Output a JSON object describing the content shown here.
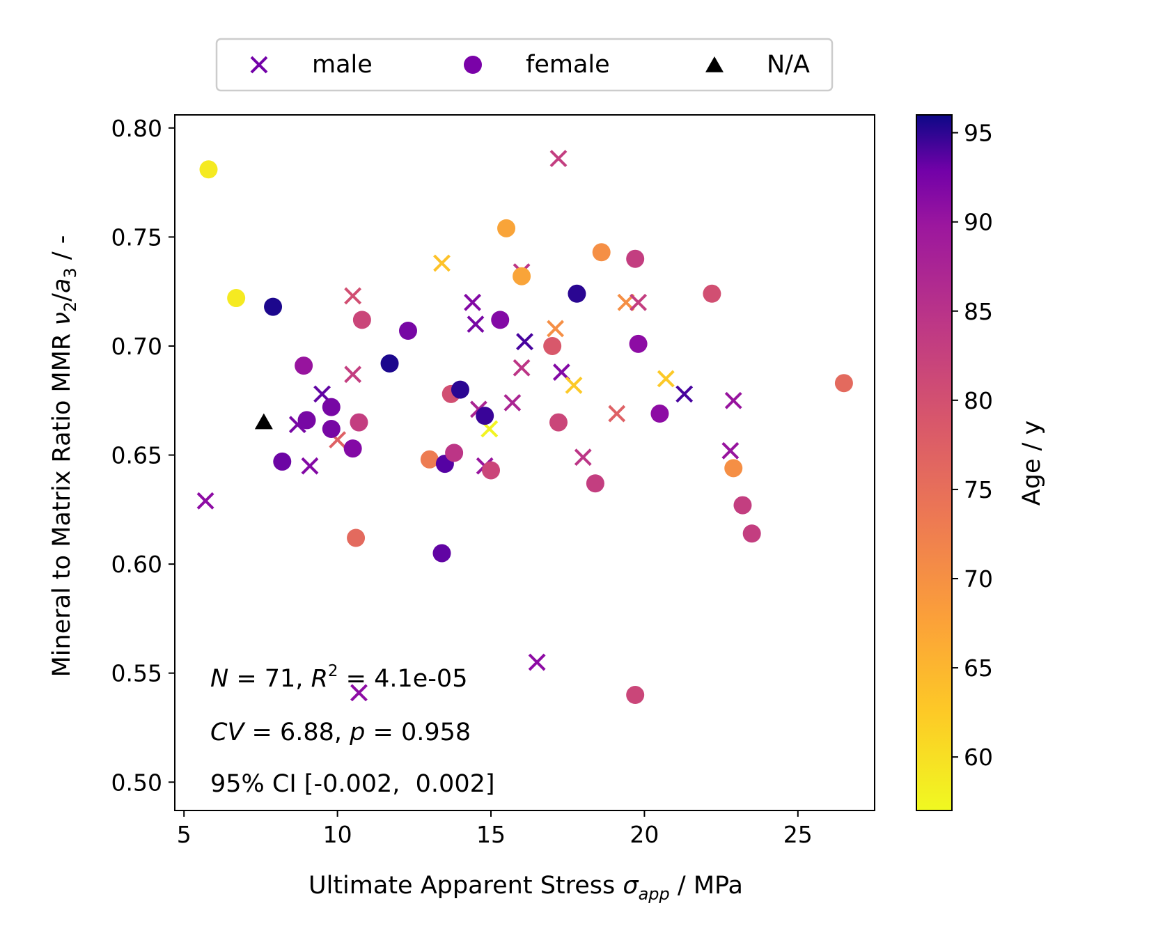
{
  "chart_data": {
    "type": "scatter",
    "xlabel": {
      "text": "Ultimate Apparent Stress ",
      "sym": "σ",
      "sub": "app",
      "tail": " / MPa"
    },
    "ylabel": {
      "pre": "Mineral to Matrix Ratio MMR ",
      "nu": "ν",
      "nusub": "2",
      "slash": "/",
      "a": "a",
      "asub": "3",
      "tail": " / -"
    },
    "xlim": [
      4.7,
      27.5
    ],
    "ylim": [
      0.487,
      0.806
    ],
    "xticks": [
      5,
      10,
      15,
      20,
      25
    ],
    "yticks": [
      0.5,
      0.55,
      0.6,
      0.65,
      0.7,
      0.75,
      0.8
    ],
    "colorbar": {
      "label": "Age / y",
      "range": [
        57,
        96
      ],
      "ticks": [
        60,
        65,
        70,
        75,
        80,
        85,
        90,
        95
      ],
      "colormap": "plasma_r"
    },
    "legend": {
      "placement": "top-center",
      "entries": [
        {
          "label": "male",
          "marker": "x"
        },
        {
          "label": "female",
          "marker": "o"
        },
        {
          "label": "N/A",
          "marker": "^"
        }
      ]
    },
    "annotations": {
      "line1": {
        "N": "N",
        "eqN": " = 71, ",
        "R": "R",
        "sup": "2",
        "rest": " = 4.1e-05"
      },
      "line2": {
        "CV": "CV",
        "eq": " = 6.88, ",
        "p": "p",
        "rest": " = 0.958"
      },
      "line3": "95% CI [-0.002,  0.002]"
    },
    "series": [
      {
        "name": "male",
        "marker": "x",
        "points": [
          {
            "x": 5.7,
            "y": 0.629,
            "age": 86
          },
          {
            "x": 8.7,
            "y": 0.664,
            "age": 88
          },
          {
            "x": 9.1,
            "y": 0.645,
            "age": 87
          },
          {
            "x": 9.5,
            "y": 0.678,
            "age": 90
          },
          {
            "x": 10.0,
            "y": 0.657,
            "age": 76
          },
          {
            "x": 10.5,
            "y": 0.723,
            "age": 78
          },
          {
            "x": 10.5,
            "y": 0.687,
            "age": 80
          },
          {
            "x": 10.7,
            "y": 0.541,
            "age": 86
          },
          {
            "x": 13.4,
            "y": 0.738,
            "age": 66
          },
          {
            "x": 14.4,
            "y": 0.72,
            "age": 87
          },
          {
            "x": 14.5,
            "y": 0.71,
            "age": 88
          },
          {
            "x": 14.6,
            "y": 0.671,
            "age": 83
          },
          {
            "x": 14.8,
            "y": 0.645,
            "age": 85
          },
          {
            "x": 14.95,
            "y": 0.662,
            "age": 58
          },
          {
            "x": 15.7,
            "y": 0.674,
            "age": 83
          },
          {
            "x": 16.0,
            "y": 0.734,
            "age": 81
          },
          {
            "x": 16.0,
            "y": 0.69,
            "age": 81
          },
          {
            "x": 16.1,
            "y": 0.702,
            "age": 92
          },
          {
            "x": 16.5,
            "y": 0.555,
            "age": 86
          },
          {
            "x": 17.1,
            "y": 0.708,
            "age": 71
          },
          {
            "x": 17.2,
            "y": 0.786,
            "age": 80
          },
          {
            "x": 17.3,
            "y": 0.688,
            "age": 87
          },
          {
            "x": 17.7,
            "y": 0.682,
            "age": 65
          },
          {
            "x": 18.0,
            "y": 0.649,
            "age": 81
          },
          {
            "x": 19.1,
            "y": 0.669,
            "age": 76
          },
          {
            "x": 19.4,
            "y": 0.72,
            "age": 71
          },
          {
            "x": 19.8,
            "y": 0.72,
            "age": 80
          },
          {
            "x": 20.7,
            "y": 0.685,
            "age": 65
          },
          {
            "x": 21.3,
            "y": 0.678,
            "age": 92
          },
          {
            "x": 22.8,
            "y": 0.652,
            "age": 85
          },
          {
            "x": 22.9,
            "y": 0.675,
            "age": 85
          }
        ]
      },
      {
        "name": "female",
        "marker": "o",
        "points": [
          {
            "x": 5.8,
            "y": 0.781,
            "age": 60
          },
          {
            "x": 6.7,
            "y": 0.722,
            "age": 60
          },
          {
            "x": 7.9,
            "y": 0.718,
            "age": 95
          },
          {
            "x": 8.2,
            "y": 0.647,
            "age": 89
          },
          {
            "x": 8.9,
            "y": 0.691,
            "age": 85
          },
          {
            "x": 9.0,
            "y": 0.666,
            "age": 88
          },
          {
            "x": 9.8,
            "y": 0.672,
            "age": 88
          },
          {
            "x": 9.8,
            "y": 0.662,
            "age": 88
          },
          {
            "x": 10.5,
            "y": 0.653,
            "age": 87
          },
          {
            "x": 10.6,
            "y": 0.612,
            "age": 75
          },
          {
            "x": 10.7,
            "y": 0.665,
            "age": 80
          },
          {
            "x": 10.8,
            "y": 0.712,
            "age": 79
          },
          {
            "x": 11.7,
            "y": 0.692,
            "age": 95
          },
          {
            "x": 12.3,
            "y": 0.707,
            "age": 88
          },
          {
            "x": 13.0,
            "y": 0.648,
            "age": 73
          },
          {
            "x": 13.4,
            "y": 0.605,
            "age": 90
          },
          {
            "x": 13.5,
            "y": 0.646,
            "age": 91
          },
          {
            "x": 13.7,
            "y": 0.678,
            "age": 78
          },
          {
            "x": 13.8,
            "y": 0.651,
            "age": 81
          },
          {
            "x": 14.0,
            "y": 0.68,
            "age": 94
          },
          {
            "x": 14.8,
            "y": 0.668,
            "age": 93
          },
          {
            "x": 15.0,
            "y": 0.643,
            "age": 79
          },
          {
            "x": 15.3,
            "y": 0.712,
            "age": 87
          },
          {
            "x": 15.5,
            "y": 0.754,
            "age": 69
          },
          {
            "x": 16.0,
            "y": 0.732,
            "age": 69
          },
          {
            "x": 17.0,
            "y": 0.7,
            "age": 77
          },
          {
            "x": 17.2,
            "y": 0.665,
            "age": 79
          },
          {
            "x": 17.8,
            "y": 0.724,
            "age": 94
          },
          {
            "x": 18.4,
            "y": 0.637,
            "age": 80
          },
          {
            "x": 18.6,
            "y": 0.743,
            "age": 71
          },
          {
            "x": 19.7,
            "y": 0.54,
            "age": 79
          },
          {
            "x": 19.7,
            "y": 0.74,
            "age": 80
          },
          {
            "x": 19.8,
            "y": 0.701,
            "age": 86
          },
          {
            "x": 20.5,
            "y": 0.669,
            "age": 86
          },
          {
            "x": 22.2,
            "y": 0.724,
            "age": 78
          },
          {
            "x": 22.9,
            "y": 0.644,
            "age": 71
          },
          {
            "x": 23.2,
            "y": 0.627,
            "age": 80
          },
          {
            "x": 23.5,
            "y": 0.614,
            "age": 80
          },
          {
            "x": 26.5,
            "y": 0.683,
            "age": 75
          }
        ]
      },
      {
        "name": "N/A",
        "marker": "^",
        "points": [
          {
            "x": 7.6,
            "y": 0.665,
            "color": "#000000"
          }
        ]
      }
    ]
  }
}
